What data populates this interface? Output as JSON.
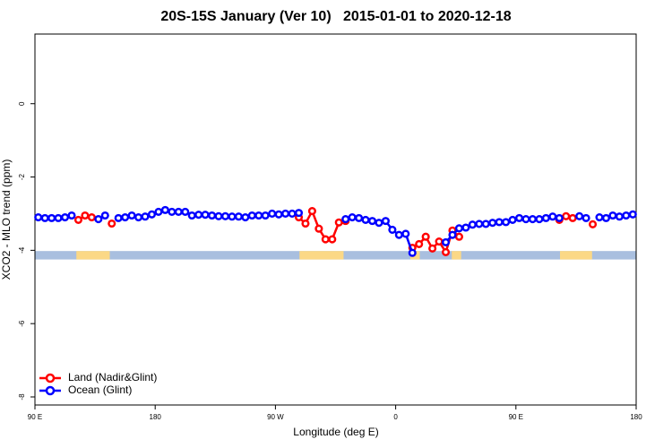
{
  "chart_data": {
    "type": "line",
    "title": "20S-15S January (Ver 10)   2015-01-01 to 2020-12-18",
    "x_label": "Longitude (deg E)",
    "y_label": "XCO2 - MLO trend (ppm)",
    "xlim": [
      90,
      540
    ],
    "xticks": [
      {
        "value": 90,
        "label": "90 E"
      },
      {
        "value": 180,
        "label": "180"
      },
      {
        "value": 270,
        "label": "90 W"
      },
      {
        "value": 360,
        "label": "0"
      },
      {
        "value": 450,
        "label": "90 E"
      },
      {
        "value": 540,
        "label": "180"
      }
    ],
    "ylim": [
      -8.22,
      1.9
    ],
    "yticks": [
      0,
      -2,
      -4,
      -6,
      -8
    ],
    "legend": "bottom left",
    "strip": {
      "range": [
        -4.25,
        -4.02
      ],
      "color": "#a9bfdf",
      "land_color": "#fbd886",
      "land_spans": [
        [
          121,
          146
        ],
        [
          288,
          321
        ],
        [
          371,
          378
        ],
        [
          402,
          409
        ],
        [
          483,
          507
        ]
      ]
    },
    "x": [
      92.5,
      97.5,
      102.5,
      107.5,
      112.5,
      117.5,
      122.5,
      127.5,
      132.5,
      137.5,
      142.5,
      147.5,
      152.5,
      157.5,
      162.5,
      167.5,
      172.5,
      177.5,
      182.5,
      187.5,
      192.5,
      197.5,
      202.5,
      207.5,
      212.5,
      217.5,
      222.5,
      227.5,
      232.5,
      237.5,
      242.5,
      247.5,
      252.5,
      257.5,
      262.5,
      267.5,
      272.5,
      277.5,
      282.5,
      287.5,
      292.5,
      297.5,
      302.5,
      307.5,
      312.5,
      317.5,
      322.5,
      327.5,
      332.5,
      337.5,
      342.5,
      347.5,
      352.5,
      357.5,
      362.5,
      367.5,
      372.5,
      377.5,
      382.5,
      387.5,
      392.5,
      397.5,
      402.5,
      407.5,
      412.5,
      417.5,
      422.5,
      427.5,
      432.5,
      437.5,
      442.5,
      447.5,
      452.5,
      457.5,
      462.5,
      467.5,
      472.5,
      477.5,
      482.5,
      487.5,
      492.5,
      497.5,
      502.5,
      507.5,
      512.5,
      517.5,
      522.5,
      527.5,
      532.5,
      537.5
    ],
    "series": [
      {
        "name": "Land (Nadir&Glint)",
        "color": "#ff0000",
        "values": [
          null,
          null,
          null,
          null,
          null,
          null,
          -3.17,
          -3.05,
          -3.1,
          null,
          null,
          -3.27,
          null,
          null,
          null,
          null,
          null,
          null,
          null,
          null,
          null,
          null,
          null,
          null,
          null,
          null,
          null,
          null,
          null,
          null,
          null,
          null,
          null,
          null,
          null,
          null,
          null,
          null,
          null,
          -3.1,
          -3.27,
          -2.93,
          -3.41,
          -3.7,
          -3.7,
          -3.24,
          -3.2,
          null,
          null,
          null,
          null,
          null,
          null,
          null,
          null,
          null,
          -3.93,
          -3.83,
          -3.63,
          -3.95,
          -3.76,
          -4.05,
          -3.46,
          -3.63,
          null,
          null,
          null,
          null,
          null,
          null,
          null,
          null,
          null,
          null,
          null,
          null,
          null,
          null,
          -3.17,
          -3.07,
          -3.12,
          null,
          null,
          -3.29,
          null,
          null,
          null,
          null,
          null,
          null
        ]
      },
      {
        "name": "Ocean (Glint)",
        "color": "#0000ff",
        "values": [
          -3.1,
          -3.12,
          -3.12,
          -3.12,
          -3.1,
          -3.05,
          null,
          null,
          null,
          -3.15,
          -3.05,
          null,
          -3.12,
          -3.1,
          -3.05,
          -3.1,
          -3.08,
          -3.02,
          -2.95,
          -2.9,
          -2.95,
          -2.95,
          -2.95,
          -3.05,
          -3.03,
          -3.03,
          -3.05,
          -3.07,
          -3.07,
          -3.08,
          -3.08,
          -3.1,
          -3.05,
          -3.05,
          -3.05,
          -3.0,
          -3.02,
          -3.0,
          -3.0,
          -2.98,
          null,
          null,
          null,
          null,
          null,
          null,
          -3.15,
          -3.1,
          -3.12,
          -3.17,
          -3.2,
          -3.25,
          -3.2,
          -3.44,
          -3.58,
          -3.55,
          -4.07,
          null,
          null,
          null,
          null,
          -3.78,
          -3.58,
          -3.4,
          -3.38,
          -3.3,
          -3.28,
          -3.28,
          -3.25,
          -3.23,
          -3.23,
          -3.17,
          -3.12,
          -3.15,
          -3.15,
          -3.15,
          -3.12,
          -3.08,
          -3.12,
          null,
          null,
          -3.07,
          -3.12,
          null,
          -3.1,
          -3.12,
          -3.05,
          -3.08,
          -3.05,
          -3.02
        ]
      }
    ]
  }
}
